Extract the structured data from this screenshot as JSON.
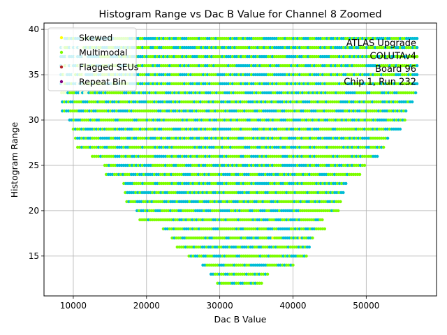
{
  "chart_data": {
    "type": "scatter",
    "title": "Histogram Range vs Dac B Value for Channel 8 Zoomed",
    "xlabel": "Dac B Value",
    "ylabel": "Histogram Range",
    "xlim": [
      6000,
      59600
    ],
    "ylim": [
      10.6,
      40.7
    ],
    "xticks": [
      10000,
      20000,
      30000,
      40000,
      50000
    ],
    "yticks": [
      15,
      20,
      25,
      30,
      35,
      40
    ],
    "grid": true,
    "legend_position": "upper-left",
    "annotation": [
      "ATLAS Upgrade",
      "COLUTAv4",
      "Board 96",
      "Chip 1, Run 232"
    ],
    "series": [
      {
        "name": "Skewed",
        "color": "#ffff00"
      },
      {
        "name": "Multimodal",
        "color": "#7cfc00"
      },
      {
        "name": "Flagged SEUs",
        "color": "#b22222"
      },
      {
        "name": "Repeat Bin",
        "color": "#800080"
      }
    ],
    "band_color": "#00bcd4",
    "bands": [
      {
        "y": 12,
        "x_min": 29700,
        "x_max": 35900
      },
      {
        "y": 13,
        "x_min": 28800,
        "x_max": 36600
      },
      {
        "y": 14,
        "x_min": 27700,
        "x_max": 40200
      },
      {
        "y": 15,
        "x_min": 25800,
        "x_max": 41900
      },
      {
        "y": 16,
        "x_min": 24200,
        "x_max": 42300
      },
      {
        "y": 17,
        "x_min": 23500,
        "x_max": 42800
      },
      {
        "y": 18,
        "x_min": 22300,
        "x_max": 44500
      },
      {
        "y": 19,
        "x_min": 19100,
        "x_max": 44200
      },
      {
        "y": 20,
        "x_min": 18700,
        "x_max": 46300
      },
      {
        "y": 21,
        "x_min": 17300,
        "x_max": 46600
      },
      {
        "y": 22,
        "x_min": 17100,
        "x_max": 47000
      },
      {
        "y": 23,
        "x_min": 16900,
        "x_max": 47500
      },
      {
        "y": 24,
        "x_min": 14500,
        "x_max": 49400
      },
      {
        "y": 25,
        "x_min": 14300,
        "x_max": 50000
      },
      {
        "y": 26,
        "x_min": 12600,
        "x_max": 51600
      },
      {
        "y": 27,
        "x_min": 10600,
        "x_max": 52600
      },
      {
        "y": 28,
        "x_min": 10300,
        "x_max": 53200
      },
      {
        "y": 29,
        "x_min": 10000,
        "x_max": 54900
      },
      {
        "y": 30,
        "x_min": 9500,
        "x_max": 55500
      },
      {
        "y": 31,
        "x_min": 8500,
        "x_max": 55700
      },
      {
        "y": 32,
        "x_min": 8500,
        "x_max": 56500
      },
      {
        "y": 33,
        "x_min": 8400,
        "x_max": 57000
      },
      {
        "y": 34,
        "x_min": 8300,
        "x_max": 57000
      },
      {
        "y": 35,
        "x_min": 8300,
        "x_max": 57000
      },
      {
        "y": 36,
        "x_min": 8300,
        "x_max": 57000
      },
      {
        "y": 37,
        "x_min": 8300,
        "x_max": 57000
      },
      {
        "y": 38,
        "x_min": 8300,
        "x_max": 57000
      },
      {
        "y": 39,
        "x_min": 8300,
        "x_max": 57000
      }
    ]
  }
}
